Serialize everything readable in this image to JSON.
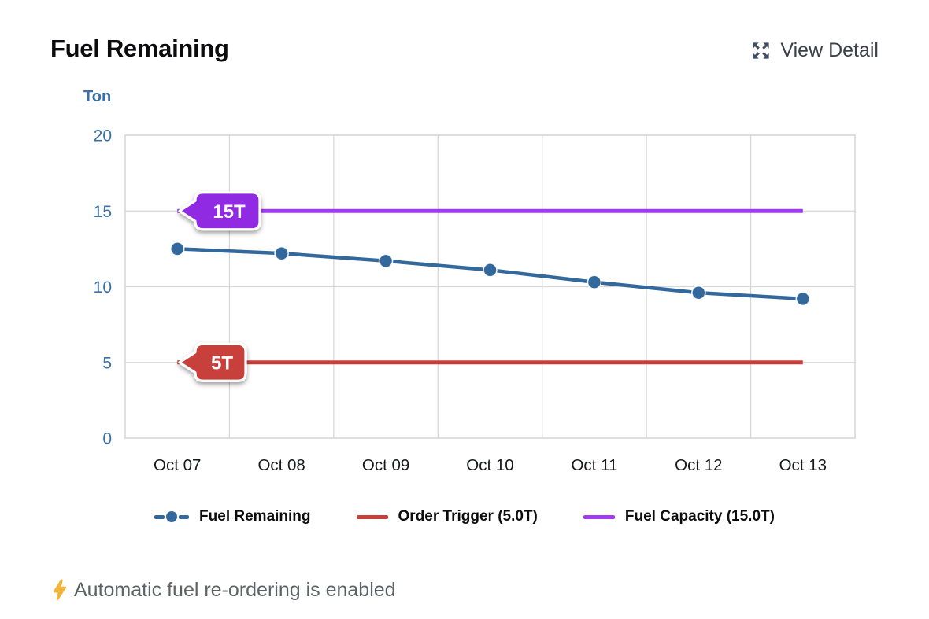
{
  "header": {
    "title": "Fuel Remaining",
    "view_detail_label": "View Detail"
  },
  "chart_data": {
    "type": "line",
    "unit_label": "Ton",
    "x": [
      "Oct 07",
      "Oct 08",
      "Oct 09",
      "Oct 10",
      "Oct 11",
      "Oct 12",
      "Oct 13"
    ],
    "series": [
      {
        "name": "Fuel Remaining",
        "values": [
          12.5,
          12.2,
          11.7,
          11.1,
          10.3,
          9.6,
          9.2
        ],
        "color": "#33689c"
      }
    ],
    "reference_lines": [
      {
        "name": "Fuel Capacity",
        "value": 15,
        "badge_text": "15T",
        "line_color": "#a13bf2",
        "badge_color": "#9129e3"
      },
      {
        "name": "Order Trigger",
        "value": 5,
        "badge_text": "5T",
        "line_color": "#c8403b",
        "badge_color": "#c8403b"
      }
    ],
    "ylim": [
      0,
      20
    ],
    "yticks": [
      0,
      5,
      10,
      15,
      20
    ],
    "grid": true,
    "legend_position": "bottom",
    "colors": {
      "axis_tick_blue": "#3a70a6",
      "x_tick": "#17191e",
      "gridline": "#d8d8d8",
      "badge_text": "#ffffff"
    }
  },
  "legend": [
    {
      "label": "Fuel Remaining",
      "color": "#33689c",
      "marker": "dash-dot-dash"
    },
    {
      "label": "Order Trigger (5.0T)",
      "color": "#c8403b",
      "marker": "line"
    },
    {
      "label": "Fuel Capacity (15.0T)",
      "color": "#a13bf2",
      "marker": "line"
    }
  ],
  "footer": {
    "note": "Automatic fuel re-ordering is enabled",
    "icon": "lightning-bolt-icon",
    "icon_color": "#f2b43a"
  }
}
